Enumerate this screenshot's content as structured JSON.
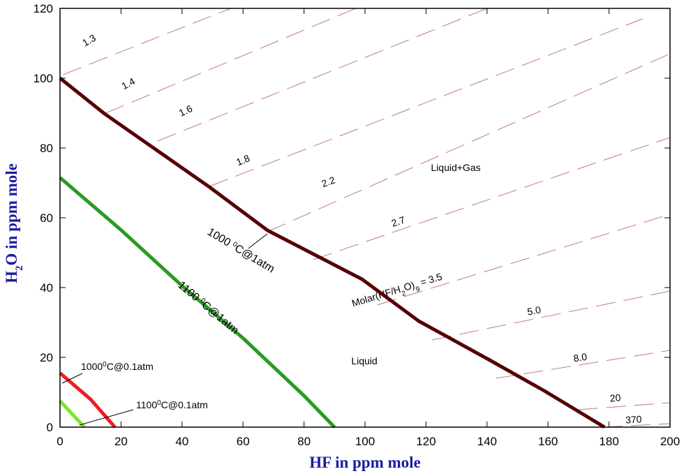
{
  "chart_data": {
    "type": "line",
    "xlabel": "HF in ppm mole",
    "ylabel_parts": [
      "H",
      "2",
      "O in ppm mole"
    ],
    "xlim": [
      0,
      200
    ],
    "xticks": [
      0,
      20,
      40,
      60,
      80,
      100,
      120,
      140,
      160,
      180,
      200
    ],
    "ylim": [
      0,
      120
    ],
    "yticks": [
      0,
      20,
      40,
      60,
      80,
      100,
      120
    ],
    "region_labels": [
      "Liquid+Gas",
      "Liquid"
    ],
    "series": [
      {
        "label_parts": [
          "1000 ",
          "0",
          "C@1atm"
        ],
        "color": "#560006",
        "x": [
          0,
          14.6,
          49,
          68,
          99,
          117.6,
          140.5,
          158.8,
          178.5
        ],
        "values": [
          100,
          89.8,
          68.8,
          56.4,
          42.4,
          30.4,
          19.4,
          10.4,
          0
        ]
      },
      {
        "label_parts": [
          "1100 ",
          "0",
          "C@1atm"
        ],
        "color": "#2a9a24",
        "x": [
          0,
          20,
          40,
          60,
          80,
          90
        ],
        "values": [
          71.5,
          56.5,
          40.5,
          25.5,
          9,
          0
        ]
      },
      {
        "label_parts": [
          "1000",
          "0",
          "C@0.1atm"
        ],
        "color": "#ee1c24",
        "x": [
          0,
          10,
          18
        ],
        "values": [
          15.5,
          8,
          0
        ]
      },
      {
        "label_parts": [
          "1100",
          "0",
          "C@0.1atm"
        ],
        "color": "#7ee52a",
        "x": [
          0,
          8
        ],
        "values": [
          7.5,
          0
        ]
      }
    ],
    "contour_color": "#c07888",
    "contours": [
      {
        "label": "1.3",
        "x": [
          1,
          56
        ],
        "y": [
          101,
          120
        ]
      },
      {
        "label": "1.4",
        "x": [
          15,
          97
        ],
        "y": [
          90,
          120
        ]
      },
      {
        "label": "1.6",
        "x": [
          32,
          140
        ],
        "y": [
          82,
          120
        ]
      },
      {
        "label": "1.8",
        "x": [
          49,
          191
        ],
        "y": [
          69,
          117
        ]
      },
      {
        "label": "2.2",
        "x": [
          68,
          200
        ],
        "y": [
          56,
          107
        ]
      },
      {
        "label": "2.7",
        "x": [
          83,
          200
        ],
        "y": [
          48,
          83
        ]
      },
      {
        "label_parts": [
          "Molar(HF/H",
          "2",
          "O)",
          "9",
          " = 3.5"
        ],
        "x": [
          104,
          200
        ],
        "y": [
          35,
          61
        ]
      },
      {
        "label": "5.0",
        "x": [
          122,
          200
        ],
        "y": [
          25,
          39
        ]
      },
      {
        "label": "8.0",
        "x": [
          143,
          200
        ],
        "y": [
          14,
          22
        ]
      },
      {
        "label": "20",
        "x": [
          170,
          200
        ],
        "y": [
          5,
          7
        ]
      },
      {
        "label": "370",
        "x": [
          178,
          200
        ],
        "y": [
          0,
          1
        ]
      }
    ]
  }
}
